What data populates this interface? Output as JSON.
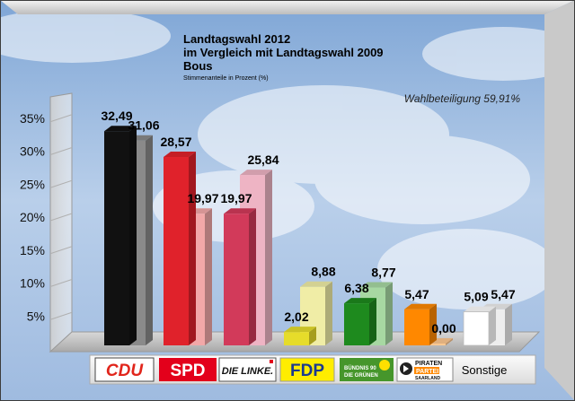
{
  "chart_data": {
    "type": "bar",
    "title": "Landtagswahl 2012",
    "subtitle_line1": "im Vergleich mit Landtagswahl 2009",
    "subtitle_line2": "Bous",
    "note": "Stimmenanteile in Prozent (%)",
    "turnout": "Wahlbeteiligung 59,91%",
    "ylim": [
      0,
      35
    ],
    "yticks": [
      "5%",
      "10%",
      "15%",
      "20%",
      "25%",
      "30%",
      "35%"
    ],
    "categories": [
      "CDU",
      "SPD",
      "DIE LINKE.",
      "FDP",
      "BÜNDNIS 90 DIE GRÜNEN",
      "PIRATEN PARTEI SAARLAND",
      "Sonstige"
    ],
    "series": [
      {
        "values": [
          32.49,
          28.57,
          19.97,
          2.02,
          6.38,
          5.47,
          5.09
        ],
        "labels": [
          "32,49",
          "28,57",
          "19,97",
          "2,02",
          "6,38",
          "5,47",
          "5,09"
        ]
      },
      {
        "values": [
          31.06,
          19.97,
          25.84,
          8.88,
          8.77,
          0.0,
          5.47
        ],
        "labels": [
          "31,06",
          "19,97",
          "25,84",
          "8,88",
          "8,77",
          "0,00",
          "5,47"
        ]
      }
    ],
    "colors_2012": [
      "#111111",
      "#e0222b",
      "#d23a5a",
      "#e6dc2a",
      "#1e8a1e",
      "#ff8800",
      "#ffffff"
    ],
    "colors_2009": [
      "#8a8a8a",
      "#f2a8a8",
      "#eeb4c4",
      "#f0eda6",
      "#a7d8a2",
      "#ffc890",
      "#eeeeee"
    ]
  },
  "legend_logos": {
    "cdu": "CDU",
    "spd": "SPD",
    "linke": "DIE LINKE.",
    "fdp": "FDP",
    "gruene_1": "BÜNDNIS 90",
    "gruene_2": "DIE GRÜNEN",
    "piraten_1": "PIRATEN",
    "piraten_2": "PARTEI",
    "piraten_3": "SAARLAND",
    "sonstige": "Sonstige"
  }
}
